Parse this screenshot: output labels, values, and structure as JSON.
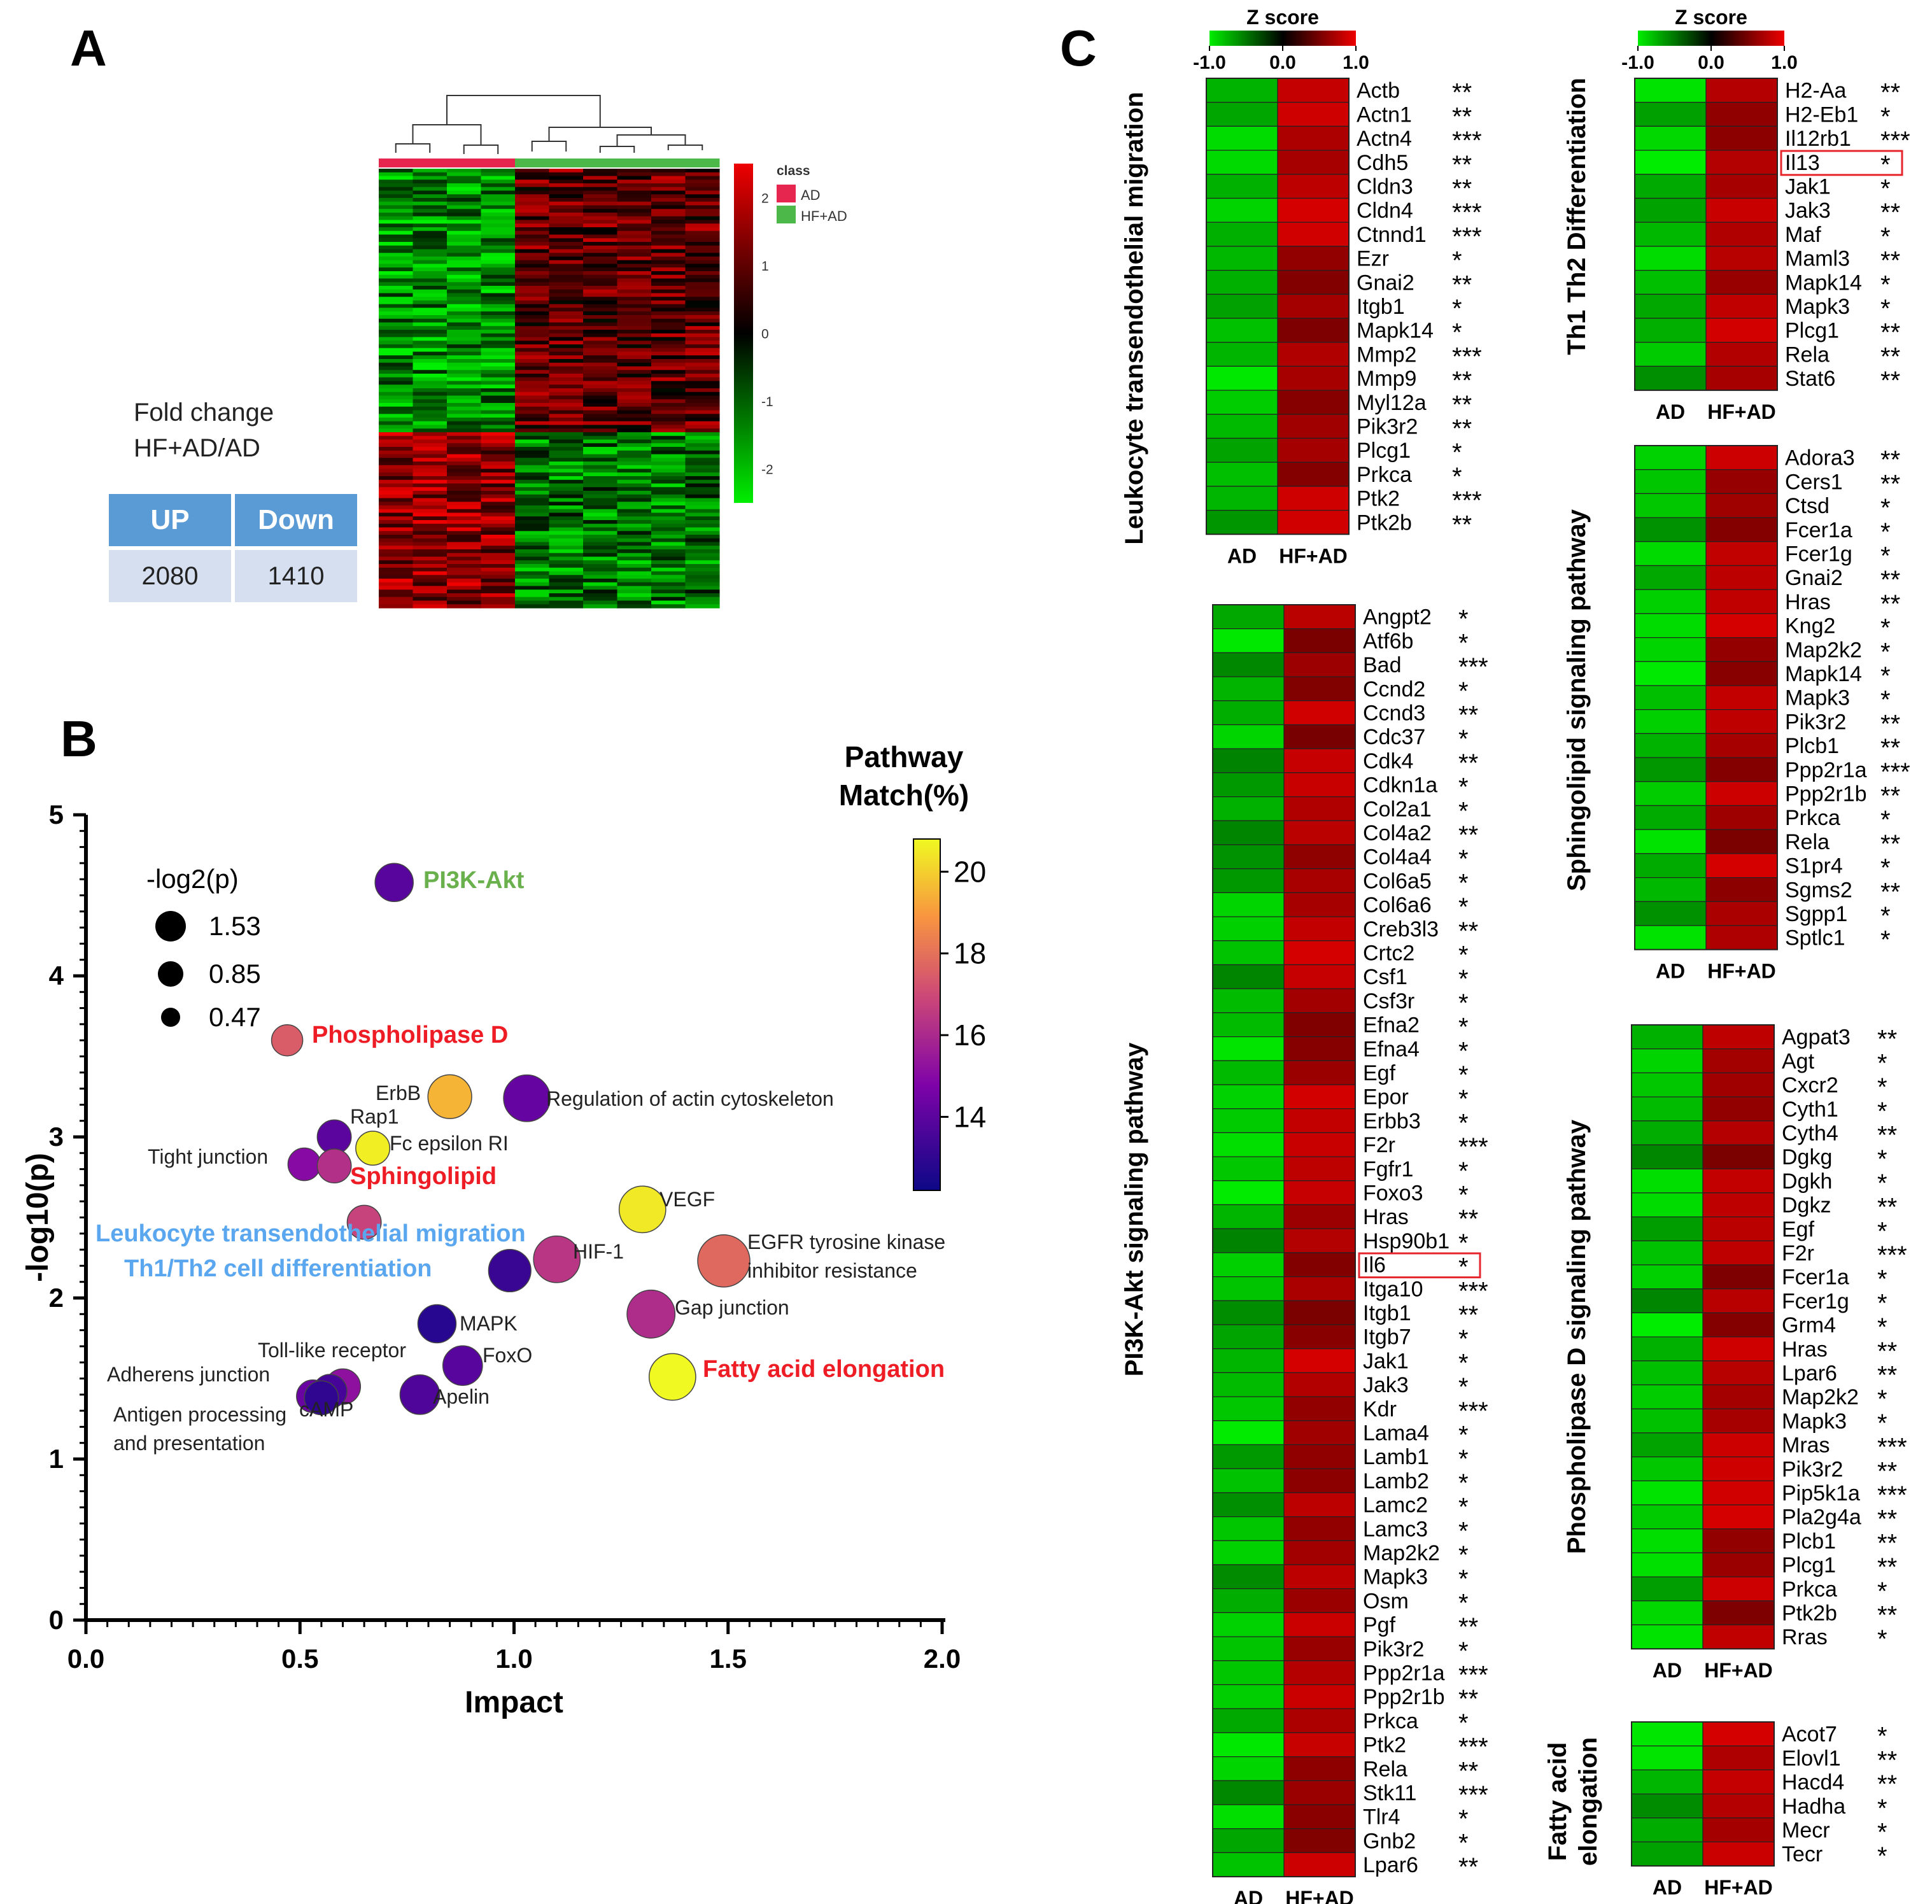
{
  "panels": {
    "a": "A",
    "b": "B",
    "c": "C"
  },
  "fold_change": {
    "title_line1": "Fold change",
    "title_line2": "HF+AD/AD",
    "headers": [
      "UP",
      "Down"
    ],
    "values": [
      "2080",
      "1410"
    ]
  },
  "colors": {
    "ad_class": "#e6264e",
    "hfad_class": "#4cb84a",
    "table_header": "#5b9bd5",
    "table_cell": "#d6dfef",
    "heat_high": "#ee0000",
    "heat_low": "#00ee00",
    "label_red": "#ee1c24",
    "label_green": "#6ab04c",
    "label_blue": "#5aa7f0"
  },
  "chart_data": [
    {
      "type": "heatmap",
      "panel": "A",
      "legend_title": "class",
      "legend_items": [
        "AD",
        "HF+AD"
      ],
      "colorbar_ticks": [
        "2",
        "1",
        "0",
        "-1",
        "-2"
      ],
      "colorbar_range": [
        -2.5,
        2.5
      ],
      "columns": 10,
      "column_groups": [
        "AD",
        "AD",
        "AD",
        "AD",
        "HF+AD",
        "HF+AD",
        "HF+AD",
        "HF+AD",
        "HF+AD",
        "HF+AD"
      ],
      "blocks": [
        {
          "share_of_rows": 0.6,
          "AD": -0.6,
          "HF+AD": 0.4
        },
        {
          "share_of_rows": 0.4,
          "AD": 0.6,
          "HF+AD": -0.5
        }
      ]
    },
    {
      "type": "scatter",
      "panel": "B",
      "xlabel": "Impact",
      "ylabel": "-log10(p)",
      "xlim": [
        0,
        2
      ],
      "ylim": [
        0,
        5
      ],
      "xticks": [
        "0.0",
        "0.5",
        "1.0",
        "1.5",
        "2.0"
      ],
      "yticks": [
        "0",
        "1",
        "2",
        "3",
        "4",
        "5"
      ],
      "size_legend_title": "-log2(p)",
      "size_legend_values": [
        "1.53",
        "0.85",
        "0.47"
      ],
      "colorbar_title_line1": "Pathway",
      "colorbar_title_line2": "Match(%)",
      "colorbar_ticks": [
        "20",
        "18",
        "16",
        "14"
      ],
      "colorbar_range": [
        12.2,
        20.8
      ],
      "points": [
        {
          "label": "PI3K-Akt",
          "x": 0.72,
          "y": 4.58,
          "size": 1.0,
          "match": 13.9,
          "label_color": "green",
          "bold": true
        },
        {
          "label": "Phospholipase D",
          "x": 0.47,
          "y": 3.6,
          "size": 0.75,
          "match": 17.5,
          "label_color": "red",
          "bold": true
        },
        {
          "label": "ErbB",
          "x": 0.85,
          "y": 3.25,
          "size": 1.2,
          "match": 19.5
        },
        {
          "label": "Regulation of actin cytoskeleton",
          "x": 1.03,
          "y": 3.24,
          "size": 1.3,
          "match": 14.2
        },
        {
          "label": "Rap1",
          "x": 0.58,
          "y": 3.0,
          "size": 0.85,
          "match": 14.0
        },
        {
          "label": "Fc epsilon RI",
          "x": 0.67,
          "y": 2.93,
          "size": 0.85,
          "match": 20.6
        },
        {
          "label": "Tight junction",
          "x": 0.51,
          "y": 2.83,
          "size": 0.8,
          "match": 15.0
        },
        {
          "label": "Sphingolipid",
          "x": 0.58,
          "y": 2.82,
          "size": 0.85,
          "match": 16.2,
          "label_color": "red",
          "bold": true
        },
        {
          "label": "VEGF",
          "x": 1.3,
          "y": 2.55,
          "size": 1.3,
          "match": 20.5
        },
        {
          "label": "Leukocyte transendothelial migration",
          "x": 0.65,
          "y": 2.47,
          "size": 0.85,
          "match": 16.8,
          "label_color": "blue",
          "bold": true
        },
        {
          "label": "EGFR tyrosine kinase inhibitor resistance",
          "x": 1.49,
          "y": 2.23,
          "size": 1.5,
          "match": 17.8
        },
        {
          "label": "HIF-1",
          "x": 1.1,
          "y": 2.24,
          "size": 1.3,
          "match": 16.4
        },
        {
          "label": "Th1/Th2 cell differentiation",
          "x": 0.99,
          "y": 2.17,
          "size": 1.15,
          "match": 13.2,
          "label_color": "blue",
          "bold": true
        },
        {
          "label": "Gap junction",
          "x": 1.32,
          "y": 1.9,
          "size": 1.35,
          "match": 16.1
        },
        {
          "label": "MAPK",
          "x": 0.82,
          "y": 1.84,
          "size": 1.0,
          "match": 12.8
        },
        {
          "label": "FoxO",
          "x": 0.88,
          "y": 1.58,
          "size": 1.05,
          "match": 13.9
        },
        {
          "label": "Fatty acid elongation",
          "x": 1.37,
          "y": 1.51,
          "size": 1.3,
          "match": 20.8,
          "label_color": "red",
          "bold": true
        },
        {
          "label": "Toll-like receptor",
          "x": 0.6,
          "y": 1.45,
          "size": 0.9,
          "match": 15.2
        },
        {
          "label": "Adherens junction",
          "x": 0.57,
          "y": 1.42,
          "size": 0.85,
          "match": 13.5
        },
        {
          "label": "Apelin",
          "x": 0.78,
          "y": 1.4,
          "size": 1.05,
          "match": 13.7
        },
        {
          "label": "Antigen processing and presentation",
          "x": 0.53,
          "y": 1.39,
          "size": 0.8,
          "match": 14.3
        },
        {
          "label": "cAMP",
          "x": 0.55,
          "y": 1.38,
          "size": 0.85,
          "match": 13.0
        }
      ]
    },
    {
      "type": "heatmap",
      "panel": "C",
      "colorbar_title": "Z score",
      "colorbar_ticks": [
        "-1.0",
        "0.0",
        "1.0"
      ],
      "columns": [
        "AD",
        "HF+AD"
      ],
      "pathways": [
        {
          "name": "Leukocyte transendothelial migration",
          "highlight": [],
          "genes": [
            [
              "Actb",
              "**"
            ],
            [
              "Actn1",
              "**"
            ],
            [
              "Actn4",
              "***"
            ],
            [
              "Cdh5",
              "**"
            ],
            [
              "Cldn3",
              "**"
            ],
            [
              "Cldn4",
              "***"
            ],
            [
              "Ctnnd1",
              "***"
            ],
            [
              "Ezr",
              "*"
            ],
            [
              "Gnai2",
              "**"
            ],
            [
              "Itgb1",
              "*"
            ],
            [
              "Mapk14",
              "*"
            ],
            [
              "Mmp2",
              "***"
            ],
            [
              "Mmp9",
              "**"
            ],
            [
              "Myl12a",
              "**"
            ],
            [
              "Pik3r2",
              "**"
            ],
            [
              "Plcg1",
              "*"
            ],
            [
              "Prkca",
              "*"
            ],
            [
              "Ptk2",
              "***"
            ],
            [
              "Ptk2b",
              "**"
            ]
          ]
        },
        {
          "name": "PI3K-Akt signaling pathway",
          "highlight": [
            "Il6"
          ],
          "genes": [
            [
              "Angpt2",
              "*"
            ],
            [
              "Atf6b",
              "*"
            ],
            [
              "Bad",
              "***"
            ],
            [
              "Ccnd2",
              "*"
            ],
            [
              "Ccnd3",
              "**"
            ],
            [
              "Cdc37",
              "*"
            ],
            [
              "Cdk4",
              "**"
            ],
            [
              "Cdkn1a",
              "*"
            ],
            [
              "Col2a1",
              "*"
            ],
            [
              "Col4a2",
              "**"
            ],
            [
              "Col4a4",
              "*"
            ],
            [
              "Col6a5",
              "*"
            ],
            [
              "Col6a6",
              "*"
            ],
            [
              "Creb3l3",
              "**"
            ],
            [
              "Crtc2",
              "*"
            ],
            [
              "Csf1",
              "*"
            ],
            [
              "Csf3r",
              "*"
            ],
            [
              "Efna2",
              "*"
            ],
            [
              "Efna4",
              "*"
            ],
            [
              "Egf",
              "*"
            ],
            [
              "Epor",
              "*"
            ],
            [
              "Erbb3",
              "*"
            ],
            [
              "F2r",
              "***"
            ],
            [
              "Fgfr1",
              "*"
            ],
            [
              "Foxo3",
              "*"
            ],
            [
              "Hras",
              "**"
            ],
            [
              "Hsp90b1",
              "*"
            ],
            [
              "Il6",
              "*"
            ],
            [
              "Itga10",
              "***"
            ],
            [
              "Itgb1",
              "**"
            ],
            [
              "Itgb7",
              "*"
            ],
            [
              "Jak1",
              "*"
            ],
            [
              "Jak3",
              "*"
            ],
            [
              "Kdr",
              "***"
            ],
            [
              "Lama4",
              "*"
            ],
            [
              "Lamb1",
              "*"
            ],
            [
              "Lamb2",
              "*"
            ],
            [
              "Lamc2",
              "*"
            ],
            [
              "Lamc3",
              "*"
            ],
            [
              "Map2k2",
              "*"
            ],
            [
              "Mapk3",
              "*"
            ],
            [
              "Osm",
              "*"
            ],
            [
              "Pgf",
              "**"
            ],
            [
              "Pik3r2",
              "*"
            ],
            [
              "Ppp2r1a",
              "***"
            ],
            [
              "Ppp2r1b",
              "**"
            ],
            [
              "Prkca",
              "*"
            ],
            [
              "Ptk2",
              "***"
            ],
            [
              "Rela",
              "**"
            ],
            [
              "Stk11",
              "***"
            ],
            [
              "Tlr4",
              "*"
            ],
            [
              "Gnb2",
              "*"
            ],
            [
              "Lpar6",
              "**"
            ]
          ]
        },
        {
          "name": "Th1 Th2 Differentiation",
          "highlight": [
            "Il13"
          ],
          "genes": [
            [
              "H2-Aa",
              "**"
            ],
            [
              "H2-Eb1",
              "*"
            ],
            [
              "Il12rb1",
              "***"
            ],
            [
              "Il13",
              "*"
            ],
            [
              "Jak1",
              "*"
            ],
            [
              "Jak3",
              "**"
            ],
            [
              "Maf",
              "*"
            ],
            [
              "Maml3",
              "**"
            ],
            [
              "Mapk14",
              "*"
            ],
            [
              "Mapk3",
              "*"
            ],
            [
              "Plcg1",
              "**"
            ],
            [
              "Rela",
              "**"
            ],
            [
              "Stat6",
              "**"
            ]
          ]
        },
        {
          "name": "Sphingolipid signaling pathway",
          "highlight": [],
          "genes": [
            [
              "Adora3",
              "**"
            ],
            [
              "Cers1",
              "**"
            ],
            [
              "Ctsd",
              "*"
            ],
            [
              "Fcer1a",
              "*"
            ],
            [
              "Fcer1g",
              "*"
            ],
            [
              "Gnai2",
              "**"
            ],
            [
              "Hras",
              "**"
            ],
            [
              "Kng2",
              "*"
            ],
            [
              "Map2k2",
              "*"
            ],
            [
              "Mapk14",
              "*"
            ],
            [
              "Mapk3",
              "*"
            ],
            [
              "Pik3r2",
              "**"
            ],
            [
              "Plcb1",
              "**"
            ],
            [
              "Ppp2r1a",
              "***"
            ],
            [
              "Ppp2r1b",
              "**"
            ],
            [
              "Prkca",
              "*"
            ],
            [
              "Rela",
              "**"
            ],
            [
              "S1pr4",
              "*"
            ],
            [
              "Sgms2",
              "**"
            ],
            [
              "Sgpp1",
              "*"
            ],
            [
              "Sptlc1",
              "*"
            ]
          ]
        },
        {
          "name": "Phospholipase D signaling pathway",
          "highlight": [],
          "genes": [
            [
              "Agpat3",
              "**"
            ],
            [
              "Agt",
              "*"
            ],
            [
              "Cxcr2",
              "*"
            ],
            [
              "Cyth1",
              "*"
            ],
            [
              "Cyth4",
              "**"
            ],
            [
              "Dgkg",
              "*"
            ],
            [
              "Dgkh",
              "*"
            ],
            [
              "Dgkz",
              "**"
            ],
            [
              "Egf",
              "*"
            ],
            [
              "F2r",
              "***"
            ],
            [
              "Fcer1a",
              "*"
            ],
            [
              "Fcer1g",
              "*"
            ],
            [
              "Grm4",
              "*"
            ],
            [
              "Hras",
              "**"
            ],
            [
              "Lpar6",
              "**"
            ],
            [
              "Map2k2",
              "*"
            ],
            [
              "Mapk3",
              "*"
            ],
            [
              "Mras",
              "***"
            ],
            [
              "Pik3r2",
              "**"
            ],
            [
              "Pip5k1a",
              "***"
            ],
            [
              "Pla2g4a",
              "**"
            ],
            [
              "Plcb1",
              "**"
            ],
            [
              "Plcg1",
              "**"
            ],
            [
              "Prkca",
              "*"
            ],
            [
              "Ptk2b",
              "**"
            ],
            [
              "Rras",
              "*"
            ]
          ]
        },
        {
          "name_line1": "Fatty acid",
          "name_line2": "elongation",
          "highlight": [],
          "genes": [
            [
              "Acot7",
              "*"
            ],
            [
              "Elovl1",
              "**"
            ],
            [
              "Hacd4",
              "**"
            ],
            [
              "Hadha",
              "*"
            ],
            [
              "Mecr",
              "*"
            ],
            [
              "Tecr",
              "*"
            ]
          ]
        }
      ]
    }
  ]
}
